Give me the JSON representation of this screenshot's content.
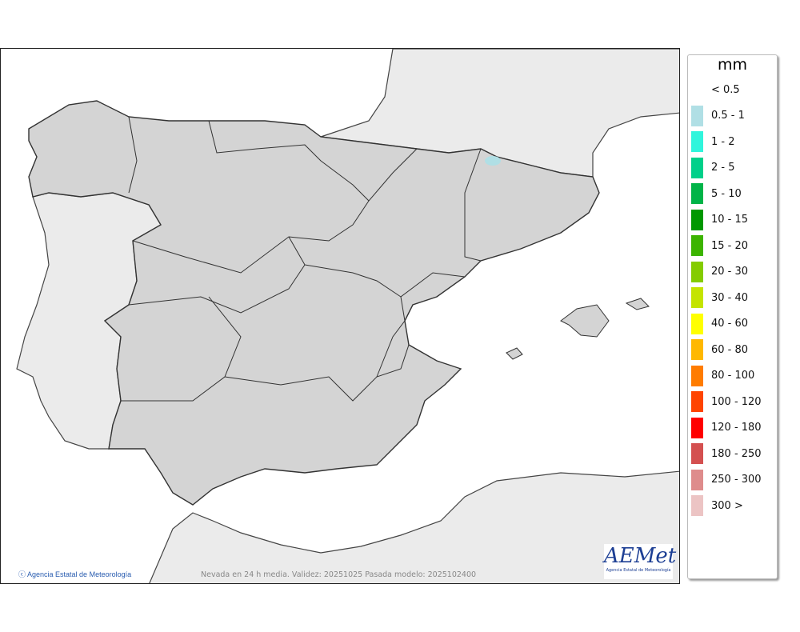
{
  "map": {
    "credit": "Agencia Estatal de Meteorología",
    "caption": "Nevada en 24 h media. Validez: 20251025 Pasada modelo: 2025102400",
    "logo_text": "AEMet",
    "logo_subtitle": "Agencia Estatal de Meteorología",
    "colors": {
      "sea": "#ffffff",
      "other_land": "#ebebeb",
      "spain": "#d4d4d4",
      "border": "#333333"
    }
  },
  "legend": {
    "unit": "mm",
    "items": [
      {
        "label": "< 0.5",
        "color": ""
      },
      {
        "label": "0.5 - 1",
        "color": "#b0dfe5"
      },
      {
        "label": "1 - 2",
        "color": "#30f5dc"
      },
      {
        "label": "2 - 5",
        "color": "#00d08a"
      },
      {
        "label": "5 - 10",
        "color": "#00b448"
      },
      {
        "label": "10 - 15",
        "color": "#009800"
      },
      {
        "label": "15 - 20",
        "color": "#3cb400"
      },
      {
        "label": "20 - 30",
        "color": "#84cc00"
      },
      {
        "label": "30 - 40",
        "color": "#c4e400"
      },
      {
        "label": "40 - 60",
        "color": "#ffff00"
      },
      {
        "label": "60 - 80",
        "color": "#ffb800"
      },
      {
        "label": "80 - 100",
        "color": "#ff7c00"
      },
      {
        "label": "100 - 120",
        "color": "#ff4400"
      },
      {
        "label": "120 - 180",
        "color": "#ff0000"
      },
      {
        "label": "180 - 250",
        "color": "#d45050"
      },
      {
        "label": "250 - 300",
        "color": "#de8c8c"
      },
      {
        "label": "300 >",
        "color": "#ecc4c4"
      }
    ]
  }
}
